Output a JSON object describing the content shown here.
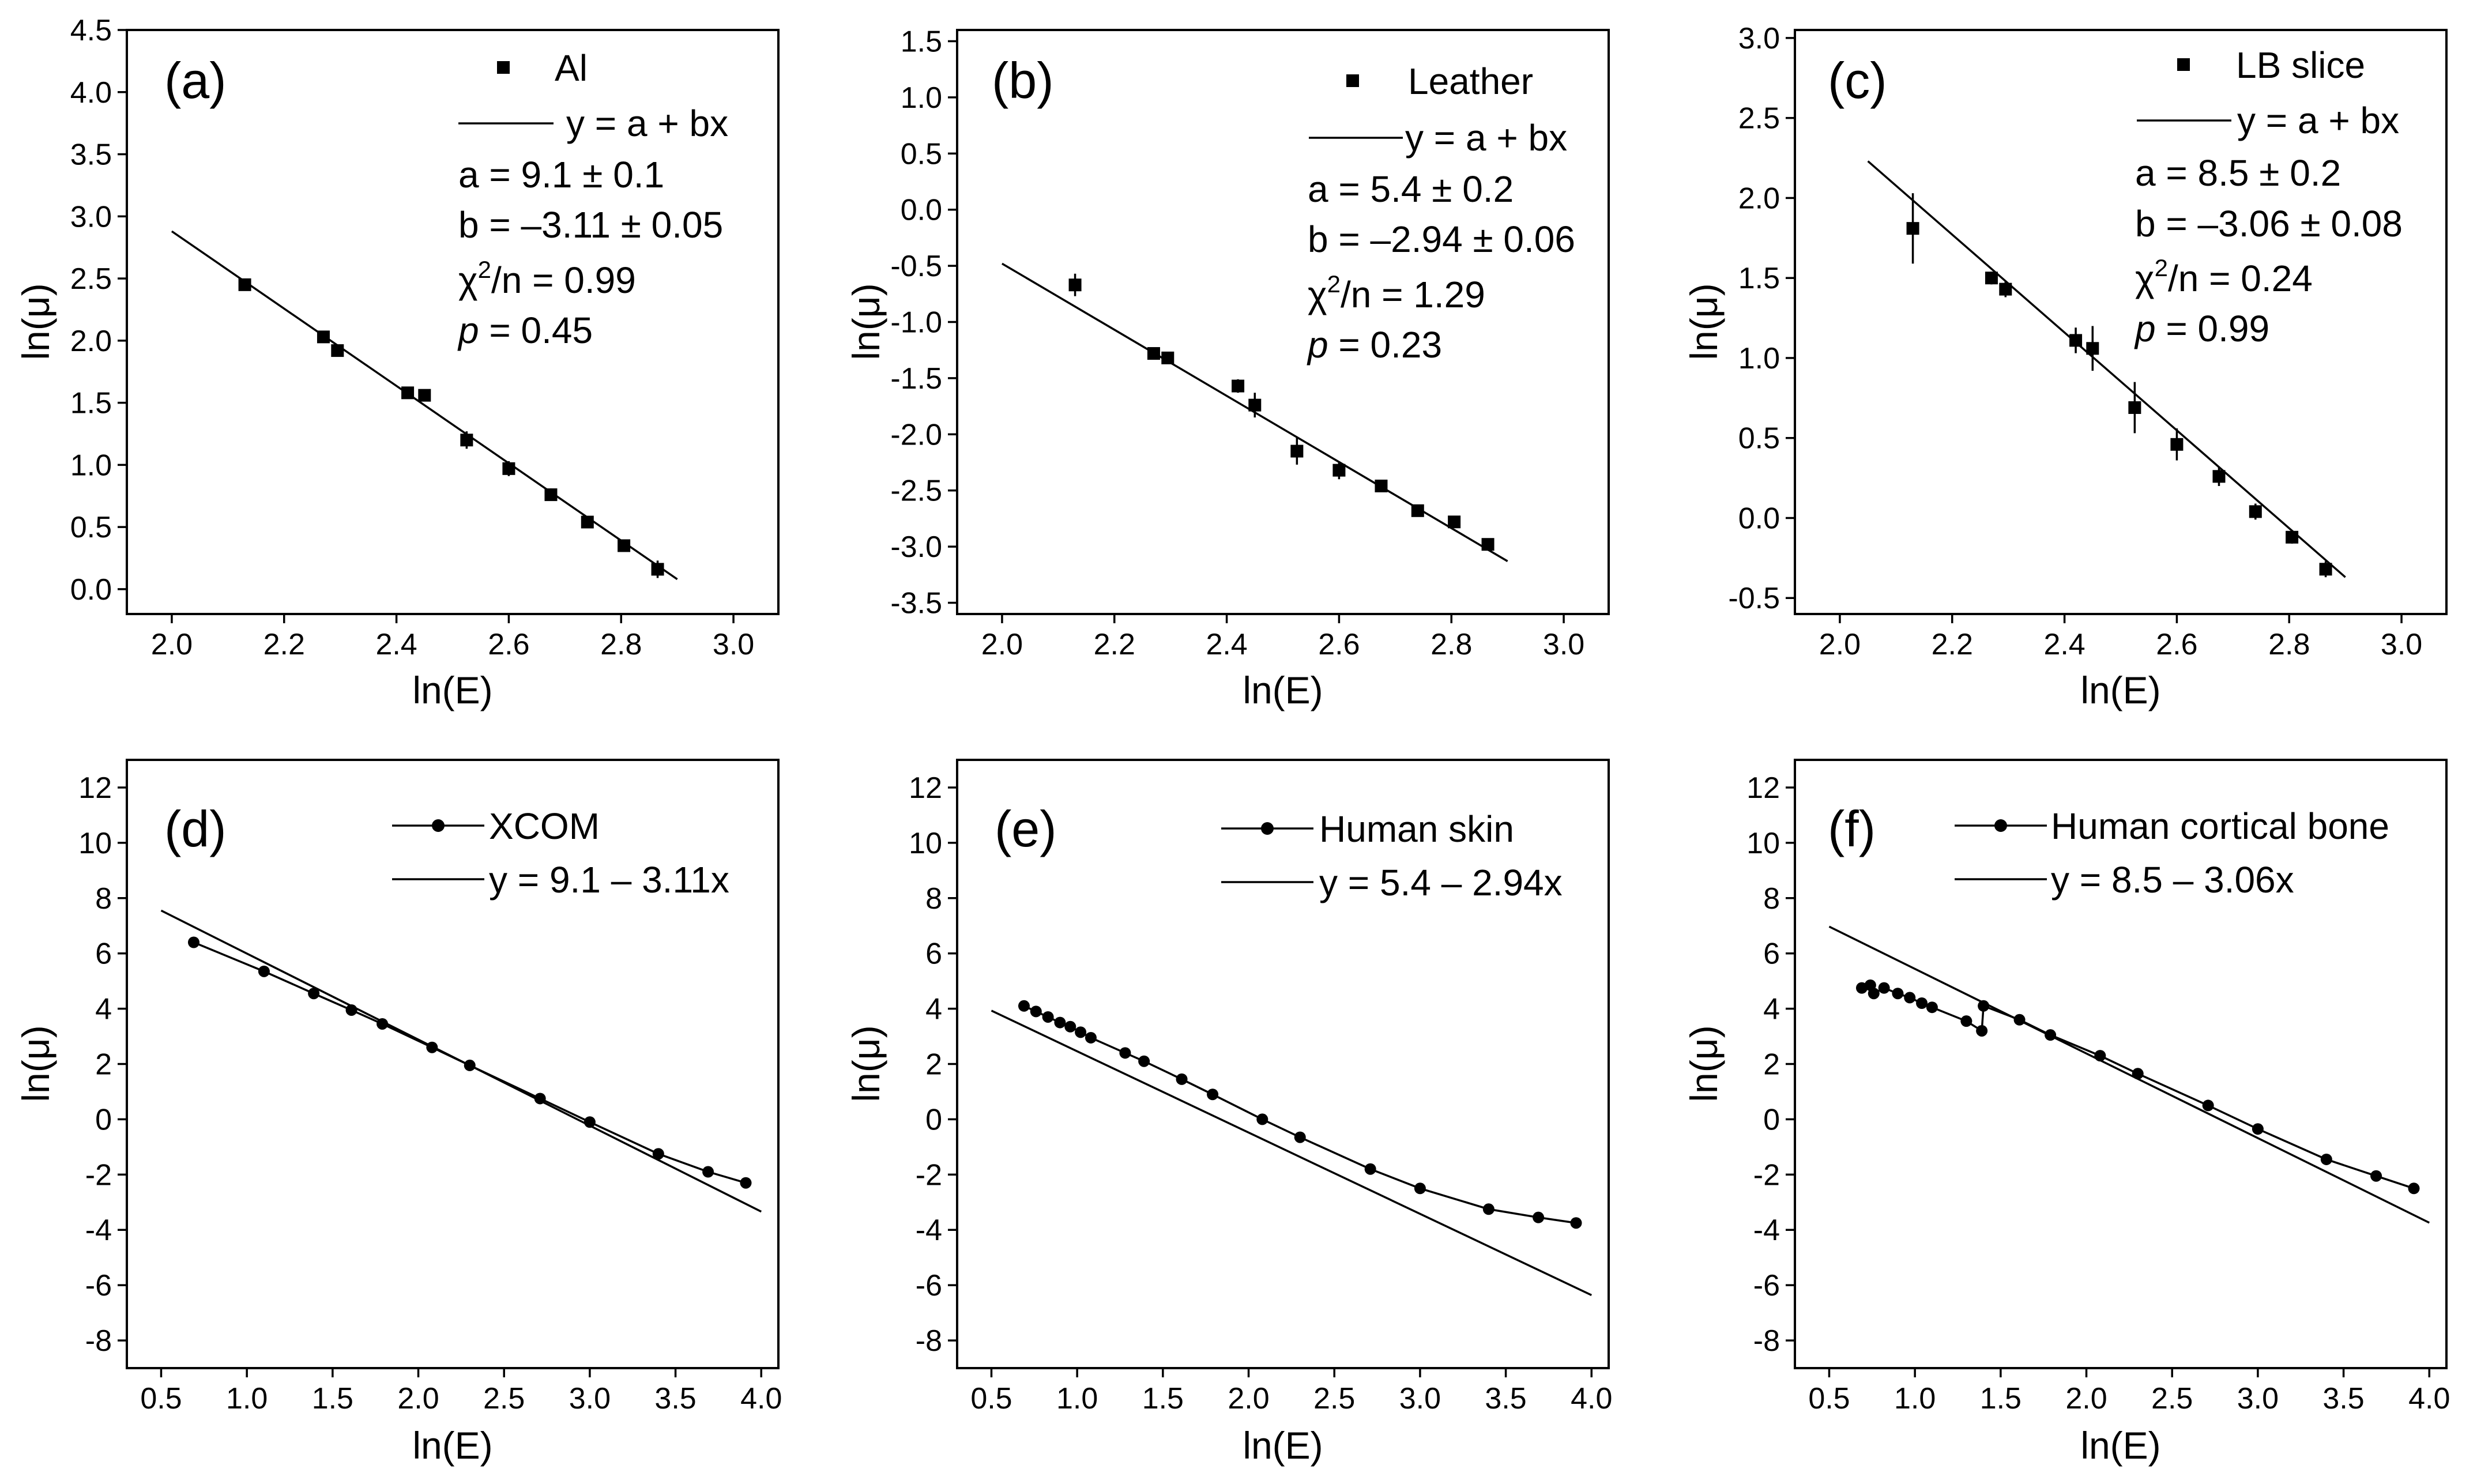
{
  "chart_data": [
    {
      "type": "scatter",
      "panel_label": "(a)",
      "xlabel": "ln(E)",
      "ylabel": "ln(μ)",
      "xlim": [
        1.92,
        3.08
      ],
      "ylim": [
        -0.2,
        4.5
      ],
      "xticks": [
        "2.0",
        "2.2",
        "2.4",
        "2.6",
        "2.8",
        "3.0"
      ],
      "yticks": [
        "0.0",
        "0.5",
        "1.0",
        "1.5",
        "2.0",
        "2.5",
        "3.0",
        "3.5",
        "4.0",
        "4.5"
      ],
      "legend": {
        "series_label": "Al",
        "fit_label": "y = a + bx",
        "a_line": "a = 9.1 ± 0.1",
        "b_line": "b = –3.11 ± 0.05",
        "chi_prefix": "χ",
        "chi_sup": "2",
        "chi_suffix": "/n = 0.99",
        "p_label": "p",
        "p_value": " = 0.45"
      },
      "series": [
        {
          "name": "Al",
          "marker": "square",
          "x": [
            2.13,
            2.27,
            2.295,
            2.42,
            2.45,
            2.525,
            2.6,
            2.675,
            2.74,
            2.805,
            2.865
          ],
          "y": [
            2.45,
            2.03,
            1.92,
            1.58,
            1.56,
            1.2,
            0.97,
            0.76,
            0.54,
            0.35,
            0.16
          ],
          "yerr": [
            0.04,
            0.02,
            0.03,
            0.02,
            0.04,
            0.07,
            0.06,
            0.05,
            0.03,
            0.04,
            0.07
          ]
        }
      ],
      "fit": {
        "x": [
          2.0,
          2.9
        ],
        "y": [
          2.88,
          0.08
        ]
      }
    },
    {
      "type": "scatter",
      "panel_label": "(b)",
      "xlabel": "ln(E)",
      "ylabel": "ln(μ)",
      "xlim": [
        1.92,
        3.08
      ],
      "ylim": [
        -3.6,
        1.6
      ],
      "xticks": [
        "2.0",
        "2.2",
        "2.4",
        "2.6",
        "2.8",
        "3.0"
      ],
      "yticks": [
        "-3.5",
        "-3.0",
        "-2.5",
        "-2.0",
        "-1.5",
        "-1.0",
        "-0.5",
        "0.0",
        "0.5",
        "1.0",
        "1.5"
      ],
      "legend": {
        "series_label": "Leather",
        "fit_label": "y = a + bx",
        "a_line": "a = 5.4 ± 0.2",
        "b_line": "b = –2.94 ± 0.06",
        "chi_prefix": "χ",
        "chi_sup": "2",
        "chi_suffix": "/n = 1.29",
        "p_label": "p",
        "p_value": " = 0.23"
      },
      "series": [
        {
          "name": "Leather",
          "marker": "square",
          "x": [
            2.13,
            2.27,
            2.295,
            2.42,
            2.45,
            2.525,
            2.6,
            2.675,
            2.74,
            2.805,
            2.865
          ],
          "y": [
            -0.67,
            -1.28,
            -1.32,
            -1.57,
            -1.74,
            -2.15,
            -2.32,
            -2.46,
            -2.68,
            -2.78,
            -2.98
          ],
          "yerr": [
            0.1,
            0.03,
            0.03,
            0.06,
            0.11,
            0.12,
            0.08,
            0.05,
            0.03,
            0.04,
            0.04
          ]
        }
      ],
      "fit": {
        "x": [
          2.0,
          2.9
        ],
        "y": [
          -0.48,
          -3.13
        ]
      }
    },
    {
      "type": "scatter",
      "panel_label": "(c)",
      "xlabel": "ln(E)",
      "ylabel": "ln(μ)",
      "xlim": [
        1.92,
        3.08
      ],
      "ylim": [
        -0.6,
        3.05
      ],
      "xticks": [
        "2.0",
        "2.2",
        "2.4",
        "2.6",
        "2.8",
        "3.0"
      ],
      "yticks": [
        "-0.5",
        "0.0",
        "0.5",
        "1.0",
        "1.5",
        "2.0",
        "2.5",
        "3.0"
      ],
      "legend": {
        "series_label": "LB slice",
        "fit_label": "y = a + bx",
        "a_line": "a = 8.5 ± 0.2",
        "b_line": "b = –3.06 ± 0.08",
        "chi_prefix": "χ",
        "chi_sup": "2",
        "chi_suffix": "/n = 0.24",
        "p_label": "p",
        "p_value": " = 0.99"
      },
      "series": [
        {
          "name": "LB slice",
          "marker": "square",
          "x": [
            2.13,
            2.27,
            2.295,
            2.42,
            2.45,
            2.525,
            2.6,
            2.675,
            2.74,
            2.805,
            2.865
          ],
          "y": [
            1.81,
            1.5,
            1.43,
            1.11,
            1.06,
            0.69,
            0.46,
            0.26,
            0.04,
            -0.12,
            -0.32
          ],
          "yerr": [
            0.22,
            0.04,
            0.05,
            0.08,
            0.14,
            0.16,
            0.1,
            0.06,
            0.05,
            0.04,
            0.05
          ]
        }
      ],
      "fit": {
        "x": [
          2.05,
          2.9
        ],
        "y": [
          2.23,
          -0.37
        ]
      }
    },
    {
      "type": "line",
      "panel_label": "(d)",
      "xlabel": "ln(E)",
      "ylabel": "ln(μ)",
      "xlim": [
        0.3,
        4.1
      ],
      "ylim": [
        -9,
        13
      ],
      "xticks": [
        "0.5",
        "1.0",
        "1.5",
        "2.0",
        "2.5",
        "3.0",
        "3.5",
        "4.0"
      ],
      "yticks": [
        "-8",
        "-6",
        "-4",
        "-2",
        "0",
        "2",
        "4",
        "6",
        "8",
        "10",
        "12"
      ],
      "legend": {
        "series_label": "XCOM",
        "fit_label": "y = 9.1 – 3.11x"
      },
      "series": [
        {
          "name": "XCOM",
          "marker": "circle",
          "x": [
            0.69,
            1.1,
            1.39,
            1.61,
            1.79,
            2.08,
            2.3,
            2.71,
            3.0,
            3.4,
            3.69,
            3.91
          ],
          "y": [
            6.4,
            5.35,
            4.55,
            3.95,
            3.45,
            2.6,
            1.95,
            0.75,
            -0.1,
            -1.25,
            -1.9,
            -2.3
          ]
        }
      ],
      "fit": {
        "x": [
          0.5,
          4.0
        ],
        "y": [
          7.55,
          -3.34
        ]
      }
    },
    {
      "type": "line",
      "panel_label": "(e)",
      "xlabel": "ln(E)",
      "ylabel": "ln(μ)",
      "xlim": [
        0.3,
        4.1
      ],
      "ylim": [
        -9,
        13
      ],
      "xticks": [
        "0.5",
        "1.0",
        "1.5",
        "2.0",
        "2.5",
        "3.0",
        "3.5",
        "4.0"
      ],
      "yticks": [
        "-8",
        "-6",
        "-4",
        "-2",
        "0",
        "2",
        "4",
        "6",
        "8",
        "10",
        "12"
      ],
      "legend": {
        "series_label": "Human skin",
        "fit_label": "y = 5.4 – 2.94x"
      },
      "series": [
        {
          "name": "Human skin",
          "marker": "circle",
          "x": [
            0.69,
            0.76,
            0.83,
            0.9,
            0.96,
            1.02,
            1.08,
            1.28,
            1.39,
            1.61,
            1.79,
            2.08,
            2.3,
            2.71,
            3.0,
            3.4,
            3.69,
            3.91
          ],
          "y": [
            4.1,
            3.9,
            3.7,
            3.5,
            3.35,
            3.15,
            2.95,
            2.4,
            2.1,
            1.45,
            0.9,
            0.0,
            -0.65,
            -1.8,
            -2.5,
            -3.25,
            -3.55,
            -3.75
          ]
        }
      ],
      "fit": {
        "x": [
          0.5,
          4.0
        ],
        "y": [
          3.93,
          -6.36
        ]
      }
    },
    {
      "type": "line",
      "panel_label": "(f)",
      "xlabel": "ln(E)",
      "ylabel": "ln(μ)",
      "xlim": [
        0.3,
        4.1
      ],
      "ylim": [
        -9,
        13
      ],
      "xticks": [
        "0.5",
        "1.0",
        "1.5",
        "2.0",
        "2.5",
        "3.0",
        "3.5",
        "4.0"
      ],
      "yticks": [
        "-8",
        "-6",
        "-4",
        "-2",
        "0",
        "2",
        "4",
        "6",
        "8",
        "10",
        "12"
      ],
      "legend": {
        "series_label": "Human cortical bone",
        "fit_label": "y = 8.5 – 3.06x"
      },
      "series": [
        {
          "name": "Human cortical bone",
          "marker": "circle",
          "x": [
            0.69,
            0.74,
            0.76,
            0.82,
            0.9,
            0.97,
            1.04,
            1.1,
            1.3,
            1.39,
            1.4,
            1.61,
            1.79,
            2.08,
            2.3,
            2.71,
            3.0,
            3.4,
            3.69,
            3.91
          ],
          "y": [
            4.75,
            4.85,
            4.55,
            4.75,
            4.55,
            4.4,
            4.2,
            4.05,
            3.55,
            3.2,
            4.1,
            3.6,
            3.05,
            2.3,
            1.65,
            0.5,
            -0.35,
            -1.45,
            -2.05,
            -2.5
          ]
        }
      ],
      "fit": {
        "x": [
          0.5,
          4.0
        ],
        "y": [
          6.97,
          -3.74
        ]
      }
    }
  ]
}
